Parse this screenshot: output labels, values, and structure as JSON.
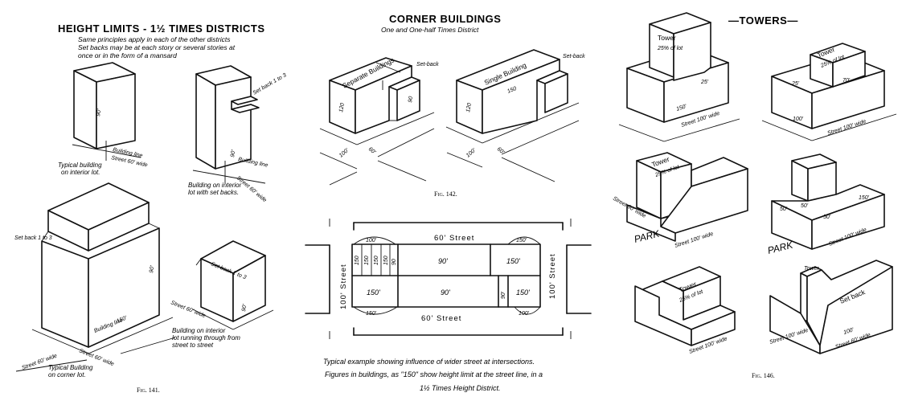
{
  "panel_141": {
    "title": "HEIGHT LIMITS - 1½ TIMES DISTRICTS",
    "subtitle_lines": [
      "Same principles apply in each of the other districts",
      "Set backs may be at each story or several stories at",
      "once or in the form of a mansard"
    ],
    "notes": {
      "interior": [
        "Typical building",
        "on interior lot."
      ],
      "setbacks": [
        "Building on interior",
        "lot with set backs."
      ],
      "corner": [
        "Typical Building",
        "on corner lot."
      ],
      "through": [
        "Building on interior",
        "lot running through from",
        "street to street"
      ]
    },
    "labels": {
      "street_60_wide": "Street 60' wide",
      "building_line": "Building line",
      "set_back_1_to_3": "Set back 1 to 3",
      "street_60_wide_b": "Street 60' wide",
      "dim_90": "90'",
      "dim_150": "150'",
      "dim_60": "60'"
    },
    "fig": "Fig. 141."
  },
  "panel_142": {
    "title": "CORNER BUILDINGS",
    "subtitle": "One and One-half Times District",
    "labels": {
      "separate_buildings": "Separate Buildings",
      "single_building": "Single Building",
      "set_back": "Set-back",
      "dim_150": "150",
      "dim_100": "100'",
      "dim_60": "60'",
      "dim_90": "90",
      "dim_120": "120"
    },
    "fig": "Fig. 142."
  },
  "plan": {
    "street_top": "60' Street",
    "street_bottom": "60' Street",
    "street_left": "100' Street",
    "street_right": "100' Street",
    "top_left_dim": "100'",
    "top_right_dim": "150'",
    "bottom_left_dim": "150'",
    "bottom_right_dim": "100'",
    "strips": [
      "150",
      "150",
      "150",
      "150",
      "90"
    ],
    "cells_top": [
      "90'",
      "150'"
    ],
    "cells_bottom": [
      "150'",
      "90'",
      "90'",
      "150'"
    ],
    "caption_lines": [
      "Typical example showing influence of wider street at intersections.",
      "Figures in buildings, as \"150\" show height limit at the street line, in a",
      "1½ Times Height District."
    ]
  },
  "panel_146": {
    "title": "—TOWERS—",
    "labels": {
      "tower": "Tower",
      "tower_25pct": "25% of lot",
      "street_100_wide": "Street 100' wide",
      "street_60_wide": "Street 60' wide",
      "park": "PARK",
      "set_back": "Set back",
      "dim_100": "100'",
      "dim_150": "150'",
      "dim_50": "50'",
      "dim_25": "25'",
      "dim_70": "70'"
    },
    "fig": "Fig. 146."
  }
}
